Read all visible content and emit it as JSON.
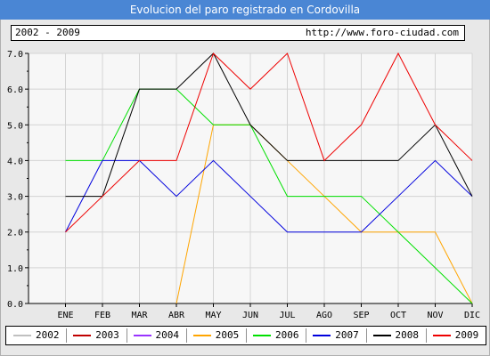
{
  "header": {
    "title": "Evolucion del paro registrado en Cordovilla",
    "range": "2002 - 2009",
    "url": "http://www.foro-ciudad.com"
  },
  "chart_data": {
    "type": "line",
    "categories": [
      "ENE",
      "FEB",
      "MAR",
      "ABR",
      "MAY",
      "JUN",
      "JUL",
      "AGO",
      "SEP",
      "OCT",
      "NOV",
      "DIC"
    ],
    "ylim": [
      0,
      7
    ],
    "yticks": [
      "0.0",
      "1.0",
      "2.0",
      "3.0",
      "4.0",
      "5.0",
      "6.0",
      "7.0"
    ],
    "grid": true,
    "legend_position": "bottom",
    "series": [
      {
        "name": "2002",
        "color": "#c0c0c0",
        "values": [
          null,
          null,
          null,
          null,
          null,
          null,
          null,
          null,
          null,
          null,
          null,
          null
        ]
      },
      {
        "name": "2003",
        "color": "#c00000",
        "values": [
          null,
          null,
          null,
          null,
          null,
          null,
          null,
          null,
          null,
          null,
          null,
          null
        ]
      },
      {
        "name": "2004",
        "color": "#9933ff",
        "values": [
          null,
          null,
          null,
          null,
          null,
          null,
          null,
          null,
          null,
          null,
          null,
          null
        ]
      },
      {
        "name": "2005",
        "color": "#ffa500",
        "values": [
          null,
          null,
          null,
          0,
          5,
          5,
          4,
          3,
          2,
          2,
          2,
          0
        ]
      },
      {
        "name": "2006",
        "color": "#00e000",
        "values": [
          4,
          4,
          6,
          6,
          5,
          5,
          3,
          3,
          3,
          2,
          1,
          0
        ]
      },
      {
        "name": "2007",
        "color": "#0000dd",
        "values": [
          2,
          4,
          4,
          3,
          4,
          3,
          2,
          2,
          2,
          3,
          4,
          3
        ]
      },
      {
        "name": "2008",
        "color": "#000000",
        "values": [
          3,
          3,
          6,
          6,
          7,
          5,
          4,
          4,
          4,
          4,
          5,
          3
        ]
      },
      {
        "name": "2009",
        "color": "#ee0000",
        "values": [
          2,
          3,
          4,
          4,
          7,
          6,
          7,
          4,
          5,
          7,
          5,
          4
        ]
      }
    ]
  }
}
